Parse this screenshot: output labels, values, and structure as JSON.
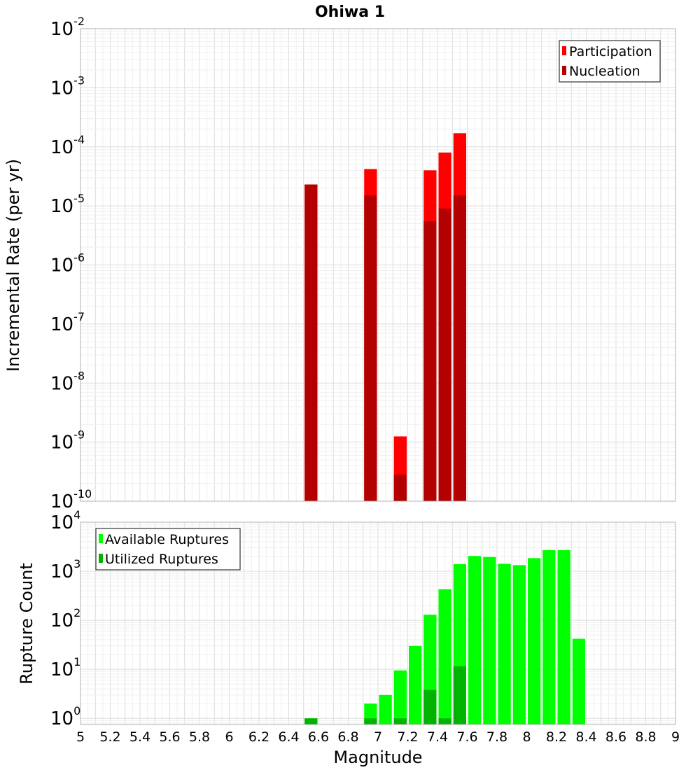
{
  "chart_data": [
    {
      "type": "bar",
      "title": "Ohiwa 1",
      "ylabel": "Incremental Rate (per yr)",
      "xlabel": "",
      "y_scale": "log",
      "ylim": [
        1e-10,
        0.01
      ],
      "xlim": [
        5,
        9
      ],
      "bin_width": 0.1,
      "grid": true,
      "legend_position": "top-right",
      "series": [
        {
          "name": "Participation",
          "color": "#ff0000",
          "points": [
            {
              "x": 6.55,
              "y": 2.3e-05
            },
            {
              "x": 6.95,
              "y": 4.2e-05
            },
            {
              "x": 7.15,
              "y": 1.25e-09
            },
            {
              "x": 7.35,
              "y": 4e-05
            },
            {
              "x": 7.45,
              "y": 8e-05
            },
            {
              "x": 7.55,
              "y": 0.00017
            }
          ]
        },
        {
          "name": "Nucleation",
          "color": "#b30000",
          "points": [
            {
              "x": 6.55,
              "y": 2.3e-05
            },
            {
              "x": 6.95,
              "y": 1.5e-05
            },
            {
              "x": 7.15,
              "y": 2.8e-10
            },
            {
              "x": 7.35,
              "y": 5.5e-06
            },
            {
              "x": 7.45,
              "y": 9e-06
            },
            {
              "x": 7.55,
              "y": 1.5e-05
            }
          ]
        }
      ]
    },
    {
      "type": "bar",
      "title": "",
      "ylabel": "Rupture Count",
      "xlabel": "Magnitude",
      "y_scale": "log",
      "ylim": [
        0.75,
        10000.0
      ],
      "xlim": [
        5,
        9
      ],
      "bin_width": 0.1,
      "grid": true,
      "legend_position": "top-left",
      "x_ticks": [
        "5",
        "5.2",
        "5.4",
        "5.6",
        "5.8",
        "6",
        "6.2",
        "6.4",
        "6.6",
        "6.8",
        "7",
        "7.2",
        "7.4",
        "7.6",
        "7.8",
        "8",
        "8.2",
        "8.4",
        "8.6",
        "8.8",
        "9"
      ],
      "series": [
        {
          "name": "Available Ruptures",
          "color": "#00ff00",
          "points": [
            {
              "x": 6.55,
              "y": 1
            },
            {
              "x": 6.95,
              "y": 2
            },
            {
              "x": 7.05,
              "y": 3
            },
            {
              "x": 7.15,
              "y": 9.5
            },
            {
              "x": 7.25,
              "y": 30
            },
            {
              "x": 7.35,
              "y": 130
            },
            {
              "x": 7.45,
              "y": 430
            },
            {
              "x": 7.55,
              "y": 1400
            },
            {
              "x": 7.65,
              "y": 2050
            },
            {
              "x": 7.75,
              "y": 1950
            },
            {
              "x": 7.85,
              "y": 1420
            },
            {
              "x": 7.95,
              "y": 1330
            },
            {
              "x": 8.05,
              "y": 1850
            },
            {
              "x": 8.15,
              "y": 2700
            },
            {
              "x": 8.25,
              "y": 2700
            },
            {
              "x": 8.35,
              "y": 42
            }
          ]
        },
        {
          "name": "Utilized Ruptures",
          "color": "#00b300",
          "points": [
            {
              "x": 6.55,
              "y": 1
            },
            {
              "x": 6.95,
              "y": 1
            },
            {
              "x": 7.15,
              "y": 1
            },
            {
              "x": 7.35,
              "y": 3.8
            },
            {
              "x": 7.45,
              "y": 1
            },
            {
              "x": 7.55,
              "y": 11.5
            }
          ]
        }
      ]
    }
  ]
}
